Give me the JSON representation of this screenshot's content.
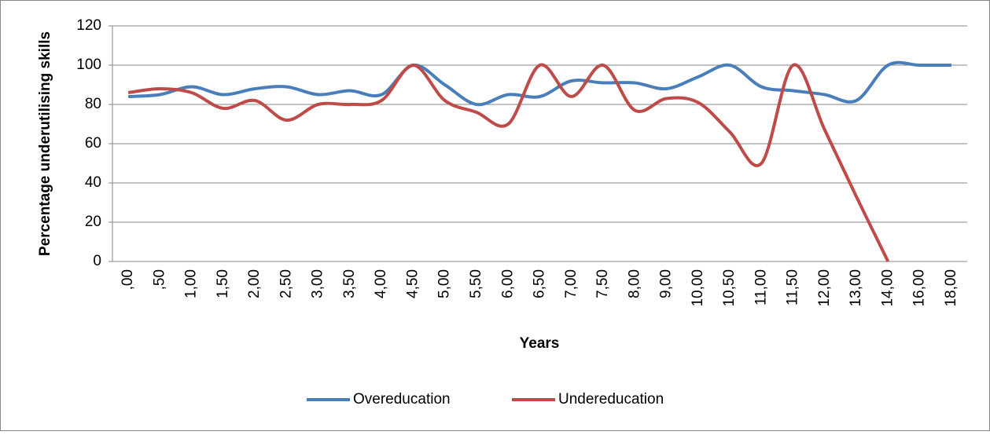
{
  "chart_data": {
    "type": "line",
    "x_label": "Years",
    "y_label": "Percentage underutilising skills",
    "categories": [
      ",00",
      ",50",
      "1,00",
      "1,50",
      "2,00",
      "2,50",
      "3,00",
      "3,50",
      "4,00",
      "4,50",
      "5,00",
      "5,50",
      "6,00",
      "6,50",
      "7,00",
      "7,50",
      "8,00",
      "9,00",
      "10,00",
      "10,50",
      "11,00",
      "11,50",
      "12,00",
      "13,00",
      "14,00",
      "16,00",
      "18,00"
    ],
    "series": [
      {
        "name": "Overeducation",
        "color": "#4a7ebb",
        "values": [
          84,
          85,
          89,
          85,
          88,
          89,
          85,
          87,
          85,
          100,
          90,
          80,
          85,
          84,
          92,
          91,
          91,
          88,
          94,
          100,
          89,
          87,
          85,
          82,
          100,
          100,
          100
        ]
      },
      {
        "name": "Undereducation",
        "color": "#be4b48",
        "values": [
          86,
          88,
          86,
          78,
          82,
          72,
          80,
          80,
          82,
          100,
          82,
          76,
          70,
          100,
          84,
          100,
          77,
          83,
          81,
          66,
          50,
          100,
          67,
          33,
          0,
          null,
          null
        ]
      }
    ],
    "ylim": [
      0,
      120
    ],
    "yticks": [
      0,
      20,
      40,
      60,
      80,
      100,
      120
    ],
    "grid": true,
    "smooth": true,
    "legend": "bottom"
  }
}
